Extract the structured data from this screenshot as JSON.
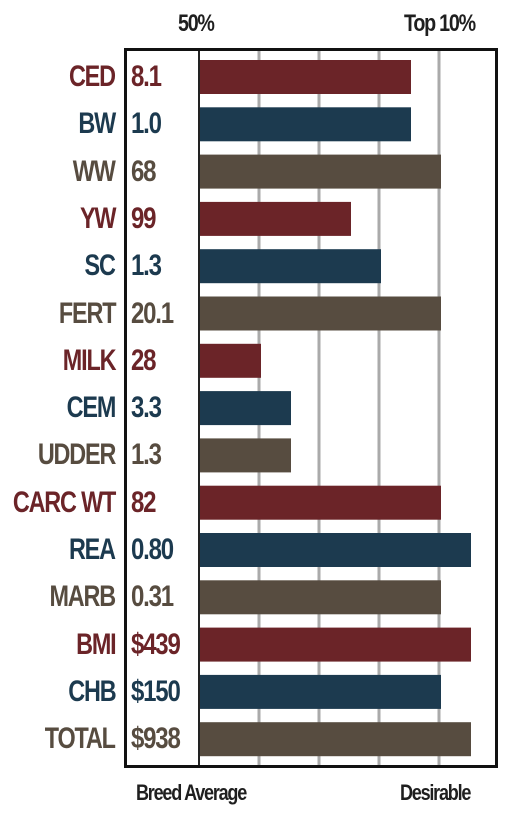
{
  "header": {
    "left_label": "50%",
    "right_label": "Top 10%"
  },
  "footer": {
    "left_label": "Breed Average",
    "right_label": "Desirable"
  },
  "colors": {
    "red": "#6b2428",
    "blue": "#1c3a4f",
    "brown": "#574c40",
    "grid": "#aaaaaa"
  },
  "chart_data": {
    "type": "bar",
    "orientation": "horizontal",
    "title": "",
    "xlabel": "",
    "ylabel": "",
    "grid": true,
    "categories": [
      "CED",
      "BW",
      "WW",
      "YW",
      "SC",
      "FERT",
      "MILK",
      "CEM",
      "UDDER",
      "CARC WT",
      "REA",
      "MARB",
      "BMI",
      "CHB",
      "TOTAL"
    ],
    "value_labels": [
      "8.1",
      "1.0",
      "68",
      "99",
      "1.3",
      "20.1",
      "28",
      "3.3",
      "1.3",
      "82",
      "0.80",
      "0.31",
      "$439",
      "$150",
      "$938"
    ],
    "bar_levels": [
      7,
      7,
      8,
      5,
      6,
      8,
      2,
      3,
      3,
      8,
      9,
      8,
      9,
      8,
      9
    ],
    "bar_level_max": 9,
    "colors": [
      "red",
      "blue",
      "brown",
      "red",
      "blue",
      "brown",
      "red",
      "blue",
      "brown",
      "red",
      "blue",
      "brown",
      "red",
      "blue",
      "brown"
    ]
  }
}
